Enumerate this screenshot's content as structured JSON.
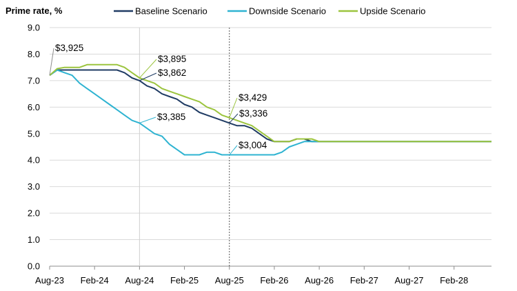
{
  "chart_data": {
    "type": "line",
    "ylabel": "Prime rate, %",
    "xlabel": "",
    "ylim": [
      0,
      9
    ],
    "y_ticks": [
      "0.0",
      "1.0",
      "2.0",
      "3.0",
      "4.0",
      "5.0",
      "6.0",
      "7.0",
      "8.0",
      "9.0"
    ],
    "x_range": [
      "2023-08",
      "2028-07"
    ],
    "x_ticks": [
      "Aug-23",
      "Feb-24",
      "Aug-24",
      "Feb-25",
      "Aug-25",
      "Feb-26",
      "Aug-26",
      "Feb-27",
      "Aug-27",
      "Feb-28"
    ],
    "grid": "horizontal",
    "legend_position": "top",
    "vertical_markers": [
      "Aug-24",
      "Aug-25"
    ],
    "series": [
      {
        "name": "Baseline Scenario",
        "color": "#1f3b63",
        "points": [
          [
            "2023-08",
            7.2
          ],
          [
            "2023-09",
            7.4
          ],
          [
            "2023-10",
            7.4
          ],
          [
            "2023-11",
            7.4
          ],
          [
            "2023-12",
            7.4
          ],
          [
            "2024-01",
            7.4
          ],
          [
            "2024-02",
            7.4
          ],
          [
            "2024-03",
            7.4
          ],
          [
            "2024-04",
            7.4
          ],
          [
            "2024-05",
            7.4
          ],
          [
            "2024-06",
            7.3
          ],
          [
            "2024-07",
            7.1
          ],
          [
            "2024-08",
            7.0
          ],
          [
            "2024-09",
            6.8
          ],
          [
            "2024-10",
            6.7
          ],
          [
            "2024-11",
            6.5
          ],
          [
            "2024-12",
            6.4
          ],
          [
            "2025-01",
            6.3
          ],
          [
            "2025-02",
            6.1
          ],
          [
            "2025-03",
            6.0
          ],
          [
            "2025-04",
            5.8
          ],
          [
            "2025-05",
            5.7
          ],
          [
            "2025-06",
            5.6
          ],
          [
            "2025-07",
            5.5
          ],
          [
            "2025-08",
            5.4
          ],
          [
            "2025-09",
            5.3
          ],
          [
            "2025-10",
            5.3
          ],
          [
            "2025-11",
            5.2
          ],
          [
            "2025-12",
            5.0
          ],
          [
            "2026-01",
            4.8
          ],
          [
            "2026-02",
            4.7
          ],
          [
            "2026-03",
            4.7
          ],
          [
            "2026-04",
            4.7
          ],
          [
            "2026-05",
            4.8
          ],
          [
            "2026-06",
            4.8
          ],
          [
            "2026-07",
            4.7
          ],
          [
            "2026-08",
            4.7
          ],
          [
            "2028-07",
            4.7
          ]
        ]
      },
      {
        "name": "Downside Scenario",
        "color": "#2eb3d1",
        "points": [
          [
            "2023-08",
            7.2
          ],
          [
            "2023-09",
            7.4
          ],
          [
            "2023-10",
            7.3
          ],
          [
            "2023-11",
            7.2
          ],
          [
            "2023-12",
            6.9
          ],
          [
            "2024-01",
            6.7
          ],
          [
            "2024-02",
            6.5
          ],
          [
            "2024-03",
            6.3
          ],
          [
            "2024-04",
            6.1
          ],
          [
            "2024-05",
            5.9
          ],
          [
            "2024-06",
            5.7
          ],
          [
            "2024-07",
            5.5
          ],
          [
            "2024-08",
            5.4
          ],
          [
            "2024-09",
            5.2
          ],
          [
            "2024-10",
            5.0
          ],
          [
            "2024-11",
            4.9
          ],
          [
            "2024-12",
            4.6
          ],
          [
            "2025-01",
            4.4
          ],
          [
            "2025-02",
            4.2
          ],
          [
            "2025-03",
            4.2
          ],
          [
            "2025-04",
            4.2
          ],
          [
            "2025-05",
            4.3
          ],
          [
            "2025-06",
            4.3
          ],
          [
            "2025-07",
            4.2
          ],
          [
            "2025-08",
            4.2
          ],
          [
            "2025-09",
            4.2
          ],
          [
            "2025-10",
            4.2
          ],
          [
            "2025-11",
            4.2
          ],
          [
            "2025-12",
            4.2
          ],
          [
            "2026-01",
            4.2
          ],
          [
            "2026-02",
            4.2
          ],
          [
            "2026-03",
            4.3
          ],
          [
            "2026-04",
            4.5
          ],
          [
            "2026-05",
            4.6
          ],
          [
            "2026-06",
            4.7
          ],
          [
            "2026-07",
            4.7
          ],
          [
            "2026-08",
            4.7
          ],
          [
            "2028-07",
            4.7
          ]
        ]
      },
      {
        "name": "Upside Scenario",
        "color": "#9bc43d",
        "points": [
          [
            "2023-08",
            7.2
          ],
          [
            "2023-09",
            7.45
          ],
          [
            "2023-10",
            7.5
          ],
          [
            "2023-11",
            7.5
          ],
          [
            "2023-12",
            7.5
          ],
          [
            "2024-01",
            7.6
          ],
          [
            "2024-02",
            7.6
          ],
          [
            "2024-03",
            7.6
          ],
          [
            "2024-04",
            7.6
          ],
          [
            "2024-05",
            7.6
          ],
          [
            "2024-06",
            7.5
          ],
          [
            "2024-07",
            7.3
          ],
          [
            "2024-08",
            7.1
          ],
          [
            "2024-09",
            7.0
          ],
          [
            "2024-10",
            6.9
          ],
          [
            "2024-11",
            6.7
          ],
          [
            "2024-12",
            6.6
          ],
          [
            "2025-01",
            6.5
          ],
          [
            "2025-02",
            6.4
          ],
          [
            "2025-03",
            6.3
          ],
          [
            "2025-04",
            6.2
          ],
          [
            "2025-05",
            6.0
          ],
          [
            "2025-06",
            5.9
          ],
          [
            "2025-07",
            5.7
          ],
          [
            "2025-08",
            5.6
          ],
          [
            "2025-09",
            5.5
          ],
          [
            "2025-10",
            5.4
          ],
          [
            "2025-11",
            5.3
          ],
          [
            "2025-12",
            5.1
          ],
          [
            "2026-01",
            4.9
          ],
          [
            "2026-02",
            4.7
          ],
          [
            "2026-03",
            4.7
          ],
          [
            "2026-04",
            4.7
          ],
          [
            "2026-05",
            4.8
          ],
          [
            "2026-06",
            4.8
          ],
          [
            "2026-07",
            4.8
          ],
          [
            "2026-08",
            4.7
          ],
          [
            "2028-07",
            4.7
          ]
        ]
      }
    ],
    "annotations": [
      {
        "text": "$3,925",
        "anchor": [
          "2023-08",
          7.2
        ]
      },
      {
        "text": "$3,895",
        "anchor": [
          "2024-08",
          7.1
        ]
      },
      {
        "text": "$3,862",
        "anchor": [
          "2024-08",
          7.0
        ]
      },
      {
        "text": "$3,385",
        "anchor": [
          "2024-08",
          5.4
        ]
      },
      {
        "text": "$3,429",
        "anchor": [
          "2025-08",
          5.6
        ]
      },
      {
        "text": "$3,336",
        "anchor": [
          "2025-08",
          5.4
        ]
      },
      {
        "text": "$3,004",
        "anchor": [
          "2025-08",
          4.2
        ]
      }
    ]
  }
}
